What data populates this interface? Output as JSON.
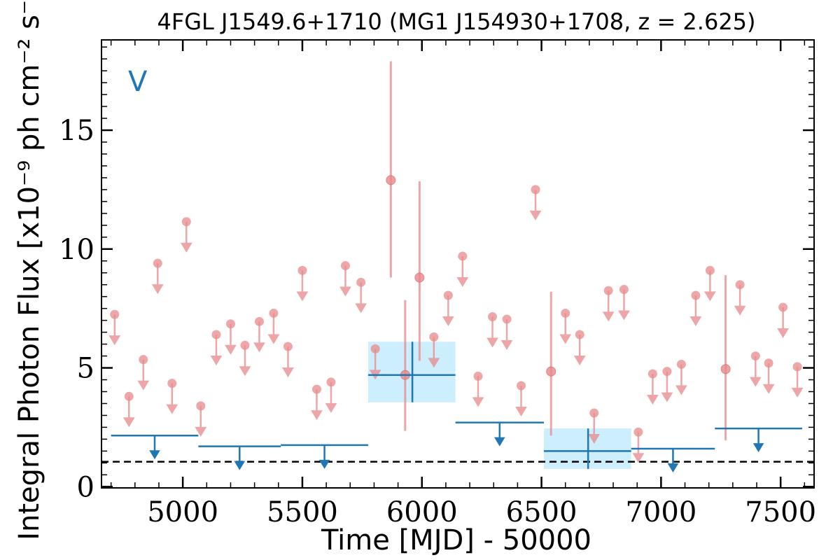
{
  "chart_data": {
    "type": "scatter",
    "title": "4FGL J1549.6+1710 (MG1 J154930+1708, z = 2.625)",
    "xlabel": "Time [MJD] - 50000",
    "ylabel": "Integral Photon Flux [x10⁻⁹ ph cm⁻² s⁻¹]",
    "panel_label": "V",
    "xlim": [
      4660,
      7640
    ],
    "ylim": [
      -0.05,
      18.8
    ],
    "x_ticks": [
      5000,
      5500,
      6000,
      6500,
      7000,
      7500
    ],
    "y_ticks": [
      0,
      5,
      10,
      15
    ],
    "colors": {
      "monthly": "#e8898b",
      "yearly": "#1f77b4",
      "yearly_band": "#cdeefc",
      "baseline": "#000000"
    },
    "baseline_flux": 1.05,
    "series": [
      {
        "name": "",
        "style": "monthly",
        "upper_limits": [
          {
            "x": 4715,
            "y": 7.25
          },
          {
            "x": 4775,
            "y": 3.8
          },
          {
            "x": 4835,
            "y": 5.35
          },
          {
            "x": 4895,
            "y": 9.4
          },
          {
            "x": 4955,
            "y": 4.35
          },
          {
            "x": 5015,
            "y": 11.15
          },
          {
            "x": 5075,
            "y": 3.4
          },
          {
            "x": 5140,
            "y": 6.4
          },
          {
            "x": 5200,
            "y": 6.85
          },
          {
            "x": 5260,
            "y": 5.95
          },
          {
            "x": 5320,
            "y": 6.95
          },
          {
            "x": 5380,
            "y": 7.3
          },
          {
            "x": 5440,
            "y": 5.9
          },
          {
            "x": 5500,
            "y": 9.1
          },
          {
            "x": 5560,
            "y": 4.1
          },
          {
            "x": 5620,
            "y": 4.4
          },
          {
            "x": 5680,
            "y": 9.3
          },
          {
            "x": 5745,
            "y": 8.6
          },
          {
            "x": 5805,
            "y": 5.8
          },
          {
            "x": 6050,
            "y": 6.3
          },
          {
            "x": 6110,
            "y": 8.05
          },
          {
            "x": 6170,
            "y": 9.7
          },
          {
            "x": 6235,
            "y": 4.65
          },
          {
            "x": 6295,
            "y": 7.15
          },
          {
            "x": 6355,
            "y": 7.05
          },
          {
            "x": 6415,
            "y": 4.25
          },
          {
            "x": 6475,
            "y": 12.5
          },
          {
            "x": 6600,
            "y": 7.3
          },
          {
            "x": 6660,
            "y": 6.4
          },
          {
            "x": 6720,
            "y": 3.1
          },
          {
            "x": 6780,
            "y": 8.25
          },
          {
            "x": 6845,
            "y": 8.3
          },
          {
            "x": 6905,
            "y": 2.3
          },
          {
            "x": 6965,
            "y": 4.75
          },
          {
            "x": 7025,
            "y": 4.85
          },
          {
            "x": 7085,
            "y": 5.15
          },
          {
            "x": 7145,
            "y": 8.05
          },
          {
            "x": 7205,
            "y": 9.1
          },
          {
            "x": 7330,
            "y": 8.5
          },
          {
            "x": 7395,
            "y": 5.5
          },
          {
            "x": 7450,
            "y": 5.2
          },
          {
            "x": 7510,
            "y": 7.55
          },
          {
            "x": 7570,
            "y": 5.05
          }
        ],
        "detections": [
          {
            "x": 5870,
            "y": 12.9,
            "ylo": 8.8,
            "yhi": 17.9
          },
          {
            "x": 5930,
            "y": 4.7,
            "ylo": 2.35,
            "yhi": 7.85
          },
          {
            "x": 5990,
            "y": 8.8,
            "ylo": 5.3,
            "yhi": 12.85
          },
          {
            "x": 6540,
            "y": 4.85,
            "ylo": 2.15,
            "yhi": 8.2
          },
          {
            "x": 7270,
            "y": 4.95,
            "ylo": 1.95,
            "yhi": 8.9
          }
        ]
      },
      {
        "name": "",
        "style": "yearly",
        "upper_limits": [
          {
            "x0": 4700,
            "x1": 5065,
            "y": 2.15
          },
          {
            "x0": 5065,
            "x1": 5410,
            "y": 1.7
          },
          {
            "x0": 5410,
            "x1": 5775,
            "y": 1.75
          },
          {
            "x0": 6140,
            "x1": 6510,
            "y": 2.7
          },
          {
            "x0": 6875,
            "x1": 7225,
            "y": 1.6
          },
          {
            "x0": 7225,
            "x1": 7590,
            "y": 2.45
          }
        ],
        "detections": [
          {
            "x0": 5775,
            "x1": 6140,
            "x": 5960,
            "y": 4.7,
            "ylo": 3.55,
            "yhi": 6.1
          },
          {
            "x0": 6510,
            "x1": 6875,
            "x": 6695,
            "y": 1.5,
            "ylo": 0.75,
            "yhi": 2.45
          }
        ]
      }
    ]
  }
}
